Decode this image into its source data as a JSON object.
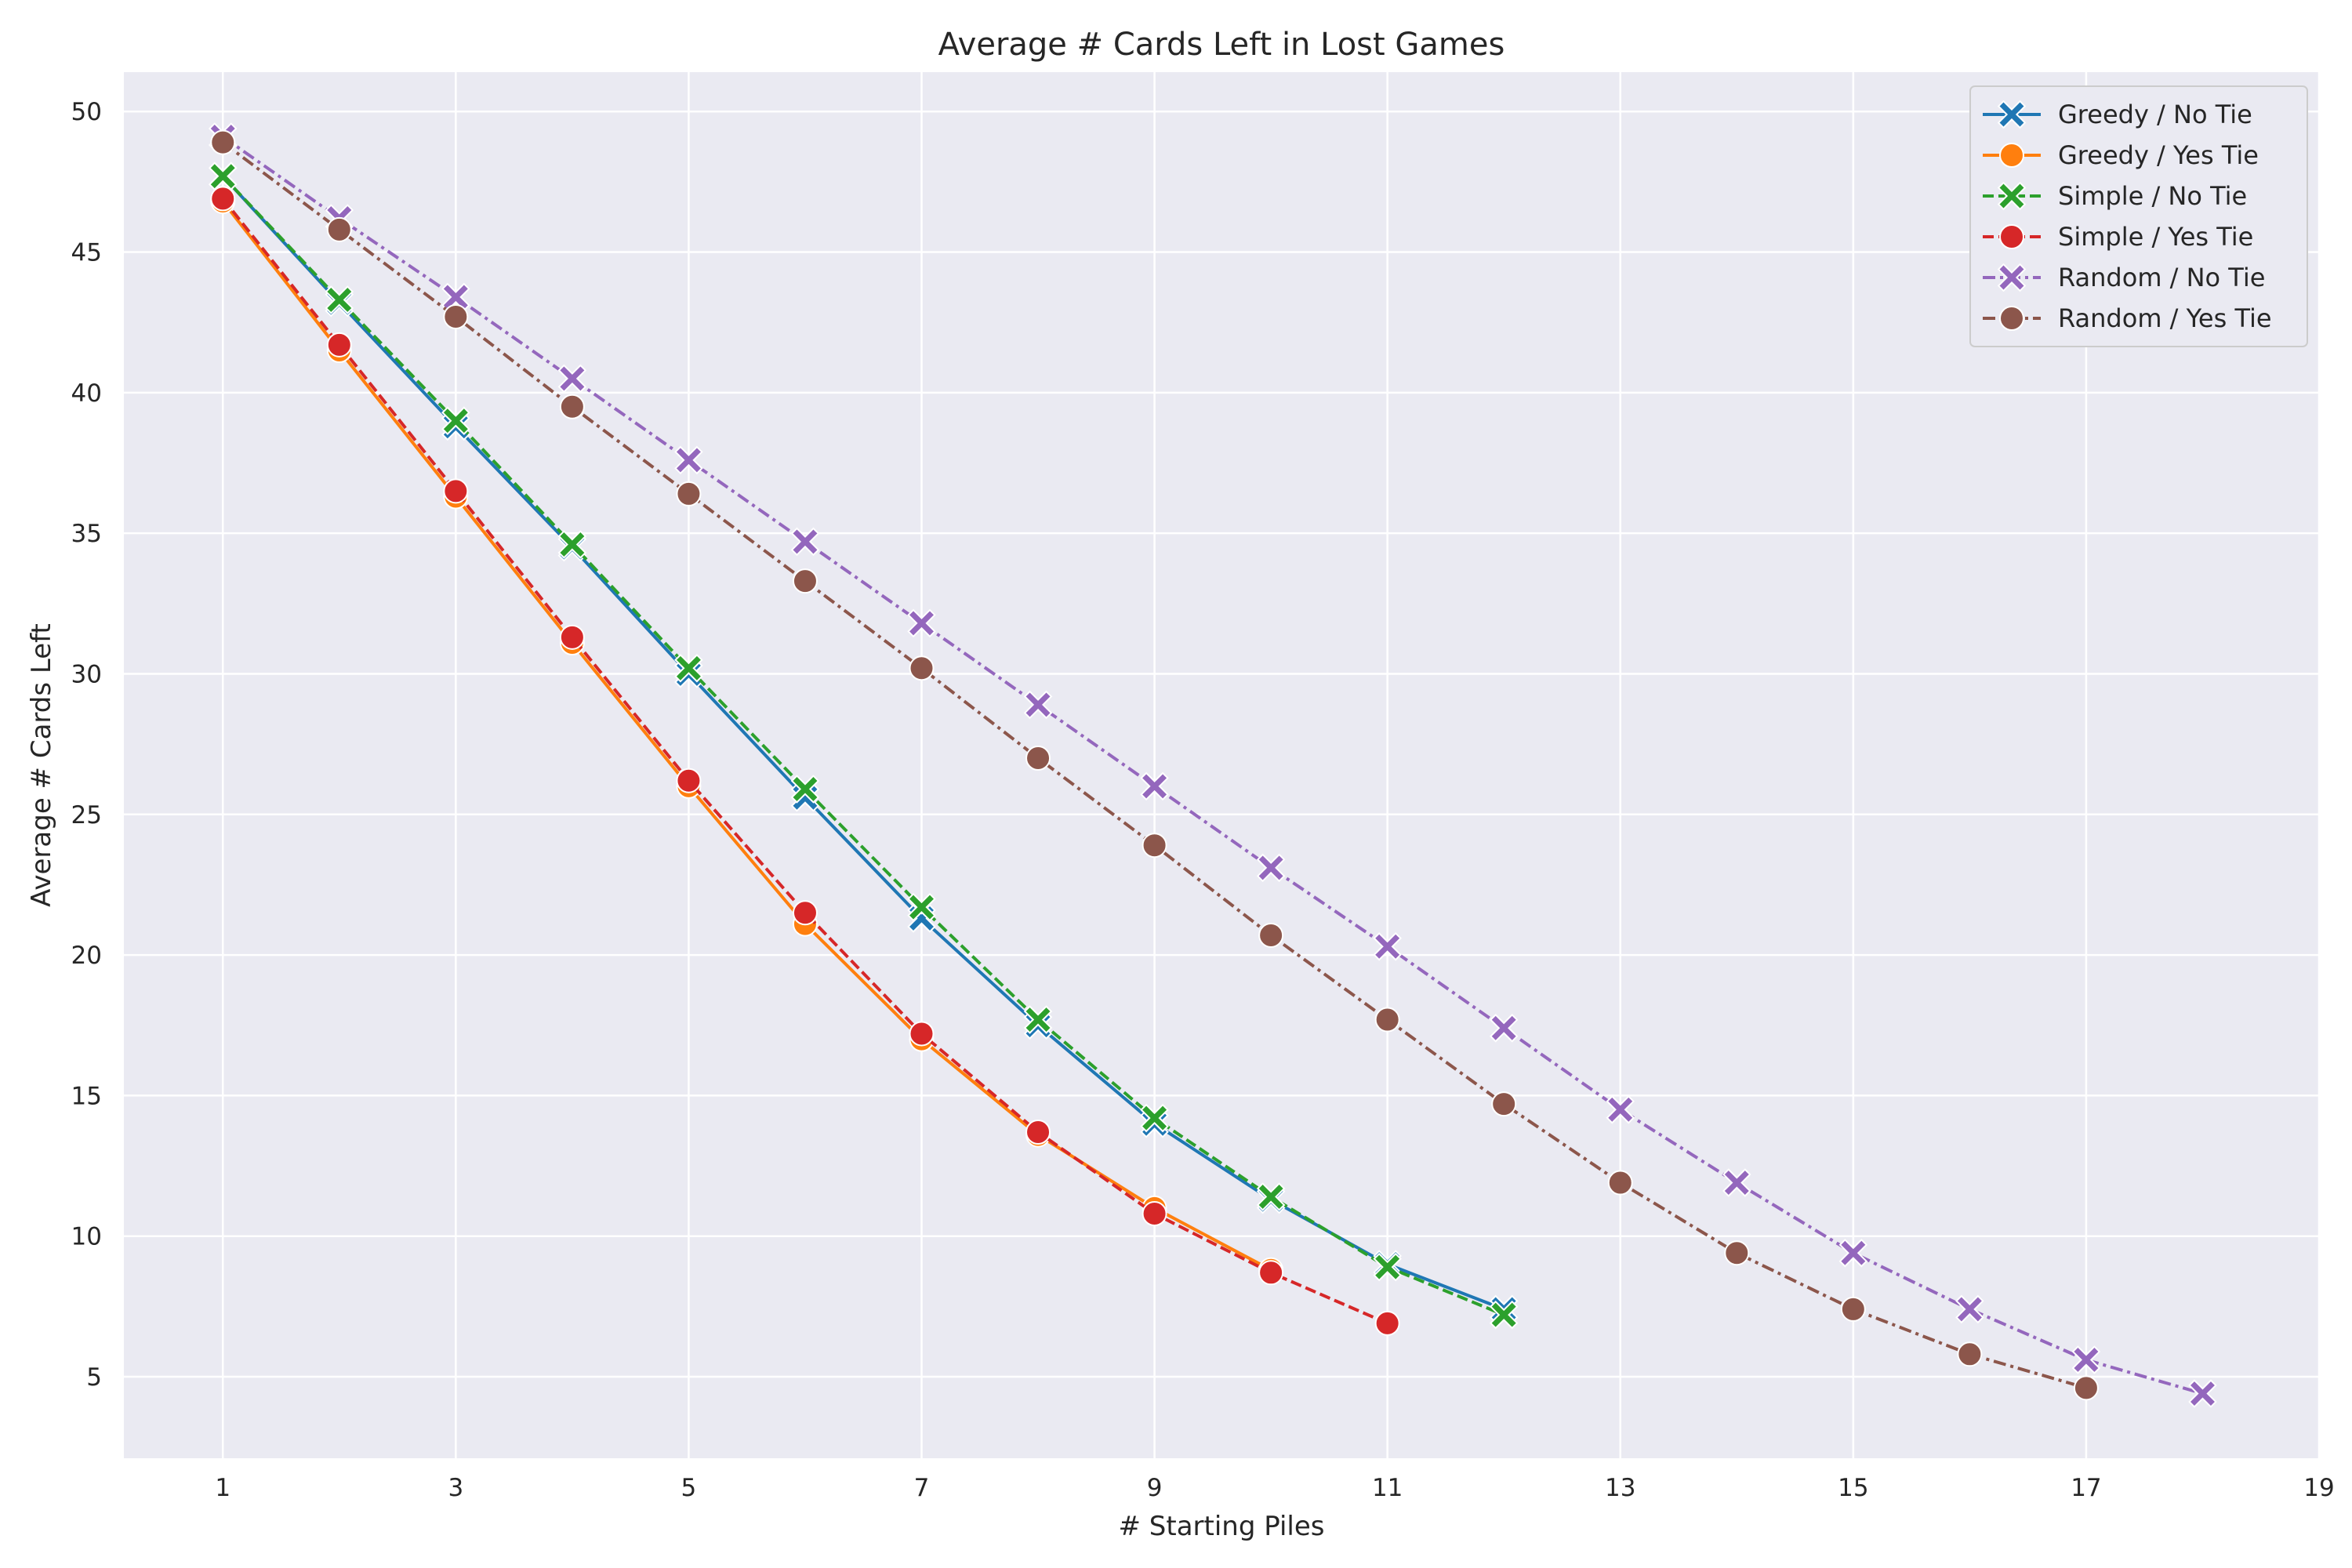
{
  "chart_data": {
    "type": "line",
    "title": "Average # Cards Left in Lost Games",
    "xlabel": "# Starting Piles",
    "ylabel": "Average # Cards Left",
    "xlim": [
      0.15,
      19
    ],
    "ylim": [
      2.1,
      51.4
    ],
    "xticks": [
      1,
      3,
      5,
      7,
      9,
      11,
      13,
      15,
      17,
      19
    ],
    "yticks": [
      5,
      10,
      15,
      20,
      25,
      30,
      35,
      40,
      45,
      50
    ],
    "grid": true,
    "legend_position": "top-right",
    "background_color": "#eaeaf2",
    "series": [
      {
        "name": "Greedy / No Tie",
        "color": "#1f77b4",
        "linestyle": "solid",
        "marker": "x",
        "x": [
          1,
          2,
          3,
          4,
          5,
          6,
          7,
          8,
          9,
          10,
          11,
          12
        ],
        "y": [
          47.7,
          43.2,
          38.8,
          34.5,
          30.0,
          25.6,
          21.3,
          17.5,
          14.0,
          11.3,
          9.0,
          7.4
        ]
      },
      {
        "name": "Greedy / Yes Tie",
        "color": "#ff7f0e",
        "linestyle": "solid",
        "marker": "o",
        "x": [
          1,
          2,
          3,
          4,
          5,
          6,
          7,
          8,
          9,
          10
        ],
        "y": [
          46.8,
          41.5,
          36.3,
          31.1,
          26.0,
          21.1,
          17.0,
          13.6,
          11.0,
          8.8
        ]
      },
      {
        "name": "Simple / No Tie",
        "color": "#2ca02c",
        "linestyle": "dashed",
        "marker": "x",
        "x": [
          1,
          2,
          3,
          4,
          5,
          6,
          7,
          8,
          9,
          10,
          11,
          12
        ],
        "y": [
          47.7,
          43.3,
          39.0,
          34.6,
          30.2,
          25.9,
          21.7,
          17.7,
          14.2,
          11.4,
          8.9,
          7.2
        ]
      },
      {
        "name": "Simple / Yes Tie",
        "color": "#d62728",
        "linestyle": "dashed",
        "marker": "o",
        "x": [
          1,
          2,
          3,
          4,
          5,
          6,
          7,
          8,
          9,
          10,
          11
        ],
        "y": [
          46.9,
          41.7,
          36.5,
          31.3,
          26.2,
          21.5,
          17.2,
          13.7,
          10.8,
          8.7,
          6.9
        ]
      },
      {
        "name": "Random / No Tie",
        "color": "#9467bd",
        "linestyle": "dashdot",
        "marker": "x",
        "x": [
          1,
          2,
          3,
          4,
          5,
          6,
          7,
          8,
          9,
          10,
          11,
          12,
          13,
          14,
          15,
          16,
          17,
          18
        ],
        "y": [
          49.1,
          46.2,
          43.4,
          40.5,
          37.6,
          34.7,
          31.8,
          28.9,
          26.0,
          23.1,
          20.3,
          17.4,
          14.5,
          11.9,
          9.4,
          7.4,
          5.6,
          4.4
        ]
      },
      {
        "name": "Random / Yes Tie",
        "color": "#8c564b",
        "linestyle": "dashdot",
        "marker": "o",
        "x": [
          1,
          2,
          3,
          4,
          5,
          6,
          7,
          8,
          9,
          10,
          11,
          12,
          13,
          14,
          15,
          16,
          17
        ],
        "y": [
          48.9,
          45.8,
          42.7,
          39.5,
          36.4,
          33.3,
          30.2,
          27.0,
          23.9,
          20.7,
          17.7,
          14.7,
          11.9,
          9.4,
          7.4,
          5.8,
          4.6
        ]
      }
    ]
  }
}
